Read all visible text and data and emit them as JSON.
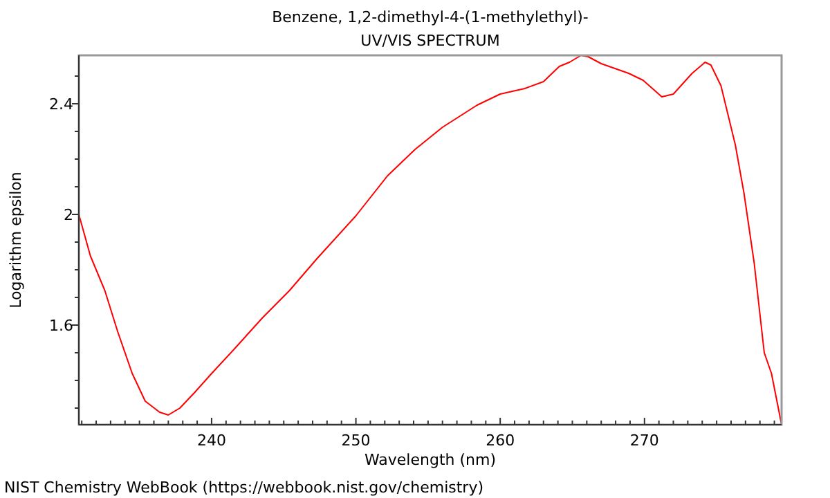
{
  "chart_data": {
    "type": "line",
    "title": "Benzene, 1,2-dimethyl-4-(1-methylethyl)-",
    "subtitle": "UV/VIS SPECTRUM",
    "xlabel": "Wavelength (nm)",
    "ylabel": "Logarithm epsilon",
    "annotations": [
      "NIST Chemistry WebBook (https://webbook.nist.gov/chemistry)"
    ],
    "xlim": [
      230.8,
      279.5
    ],
    "ylim": [
      1.24,
      2.575
    ],
    "xticks": [
      {
        "value": 231,
        "label": null
      },
      {
        "value": 232,
        "label": null
      },
      {
        "value": 233,
        "label": null
      },
      {
        "value": 234,
        "label": null
      },
      {
        "value": 235,
        "label": null
      },
      {
        "value": 236,
        "label": null
      },
      {
        "value": 237,
        "label": null
      },
      {
        "value": 238,
        "label": null
      },
      {
        "value": 239,
        "label": null
      },
      240,
      {
        "value": 241,
        "label": null
      },
      {
        "value": 242,
        "label": null
      },
      {
        "value": 243,
        "label": null
      },
      {
        "value": 244,
        "label": null
      },
      {
        "value": 245,
        "label": null
      },
      {
        "value": 246,
        "label": null
      },
      {
        "value": 247,
        "label": null
      },
      {
        "value": 248,
        "label": null
      },
      {
        "value": 249,
        "label": null
      },
      250,
      {
        "value": 251,
        "label": null
      },
      {
        "value": 252,
        "label": null
      },
      {
        "value": 253,
        "label": null
      },
      {
        "value": 254,
        "label": null
      },
      {
        "value": 255,
        "label": null
      },
      {
        "value": 256,
        "label": null
      },
      {
        "value": 257,
        "label": null
      },
      {
        "value": 258,
        "label": null
      },
      {
        "value": 259,
        "label": null
      },
      260,
      {
        "value": 261,
        "label": null
      },
      {
        "value": 262,
        "label": null
      },
      {
        "value": 263,
        "label": null
      },
      {
        "value": 264,
        "label": null
      },
      {
        "value": 265,
        "label": null
      },
      {
        "value": 266,
        "label": null
      },
      {
        "value": 267,
        "label": null
      },
      {
        "value": 268,
        "label": null
      },
      {
        "value": 269,
        "label": null
      },
      270,
      {
        "value": 271,
        "label": null
      },
      {
        "value": 272,
        "label": null
      },
      {
        "value": 273,
        "label": null
      },
      {
        "value": 274,
        "label": null
      },
      {
        "value": 275,
        "label": null
      },
      {
        "value": 276,
        "label": null
      },
      {
        "value": 277,
        "label": null
      },
      {
        "value": 278,
        "label": null
      },
      {
        "value": 279,
        "label": null
      }
    ],
    "yticks": [
      {
        "value": 1.3,
        "label": null
      },
      {
        "value": 1.4,
        "label": null
      },
      {
        "value": 1.5,
        "label": null
      },
      {
        "value": 1.6,
        "label": "1.6"
      },
      {
        "value": 1.7,
        "label": null
      },
      {
        "value": 1.8,
        "label": null
      },
      {
        "value": 1.9,
        "label": null
      },
      2,
      {
        "value": 2.1,
        "label": null
      },
      {
        "value": 2.2,
        "label": null
      },
      {
        "value": 2.3,
        "label": null
      },
      {
        "value": 2.4,
        "label": "2.4"
      },
      {
        "value": 2.5,
        "label": null
      }
    ],
    "grid": false,
    "marker": "none",
    "line_style": "solid",
    "series": [
      {
        "color": "#ff0000",
        "x": [
          230.8,
          231.6,
          232.6,
          233.5,
          234.5,
          235.4,
          236.4,
          237.0,
          237.8,
          238.8,
          240.0,
          241.6,
          243.5,
          245.4,
          247.3,
          250.0,
          252.2,
          254.1,
          256.0,
          258.4,
          260.0,
          261.7,
          263.0,
          264.1,
          264.8,
          265.6,
          266.1,
          267.0,
          268.9,
          269.9,
          271.2,
          272.0,
          273.3,
          274.2,
          274.6,
          275.3,
          276.3,
          276.9,
          277.6,
          278.3,
          278.8,
          279.5
        ],
        "values": [
          2.0,
          1.85,
          1.725,
          1.575,
          1.425,
          1.325,
          1.285,
          1.275,
          1.3,
          1.355,
          1.425,
          1.515,
          1.625,
          1.725,
          1.84,
          1.995,
          2.14,
          2.235,
          2.315,
          2.395,
          2.435,
          2.455,
          2.48,
          2.535,
          2.55,
          2.575,
          2.57,
          2.545,
          2.51,
          2.485,
          2.425,
          2.435,
          2.51,
          2.55,
          2.54,
          2.465,
          2.25,
          2.075,
          1.825,
          1.5,
          1.425,
          1.24
        ]
      }
    ]
  }
}
